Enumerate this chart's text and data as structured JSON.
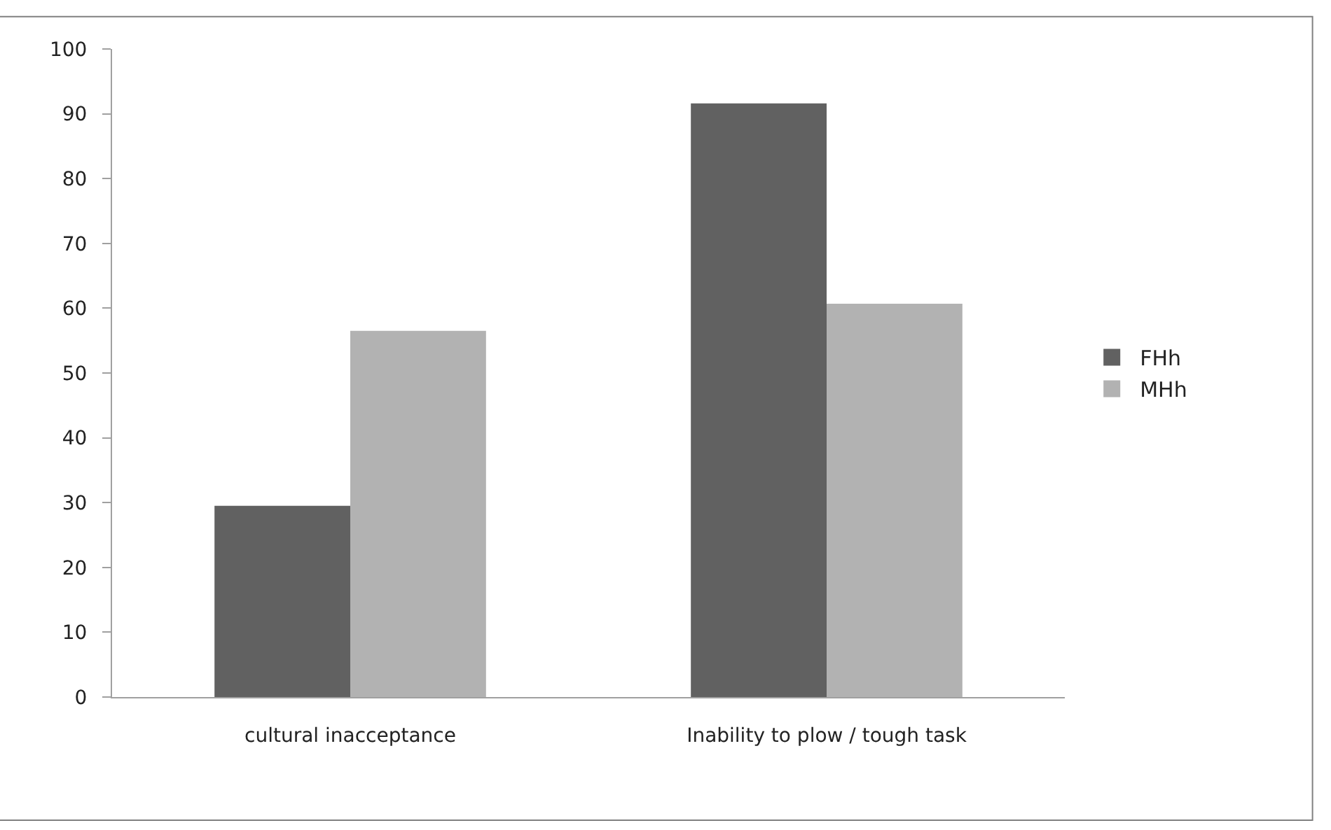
{
  "chart_data": {
    "type": "bar",
    "categories": [
      "cultural inacceptance",
      "Inability to plow / tough task"
    ],
    "series": [
      {
        "name": "FHh",
        "color": "#616161",
        "values": [
          29.5,
          91.6
        ]
      },
      {
        "name": "MHh",
        "color": "#b2b2b2",
        "values": [
          56.5,
          60.7
        ]
      }
    ],
    "ylim": [
      0,
      100
    ],
    "yticks": [
      0,
      10,
      20,
      30,
      40,
      50,
      60,
      70,
      80,
      90,
      100
    ],
    "legend": "right"
  }
}
